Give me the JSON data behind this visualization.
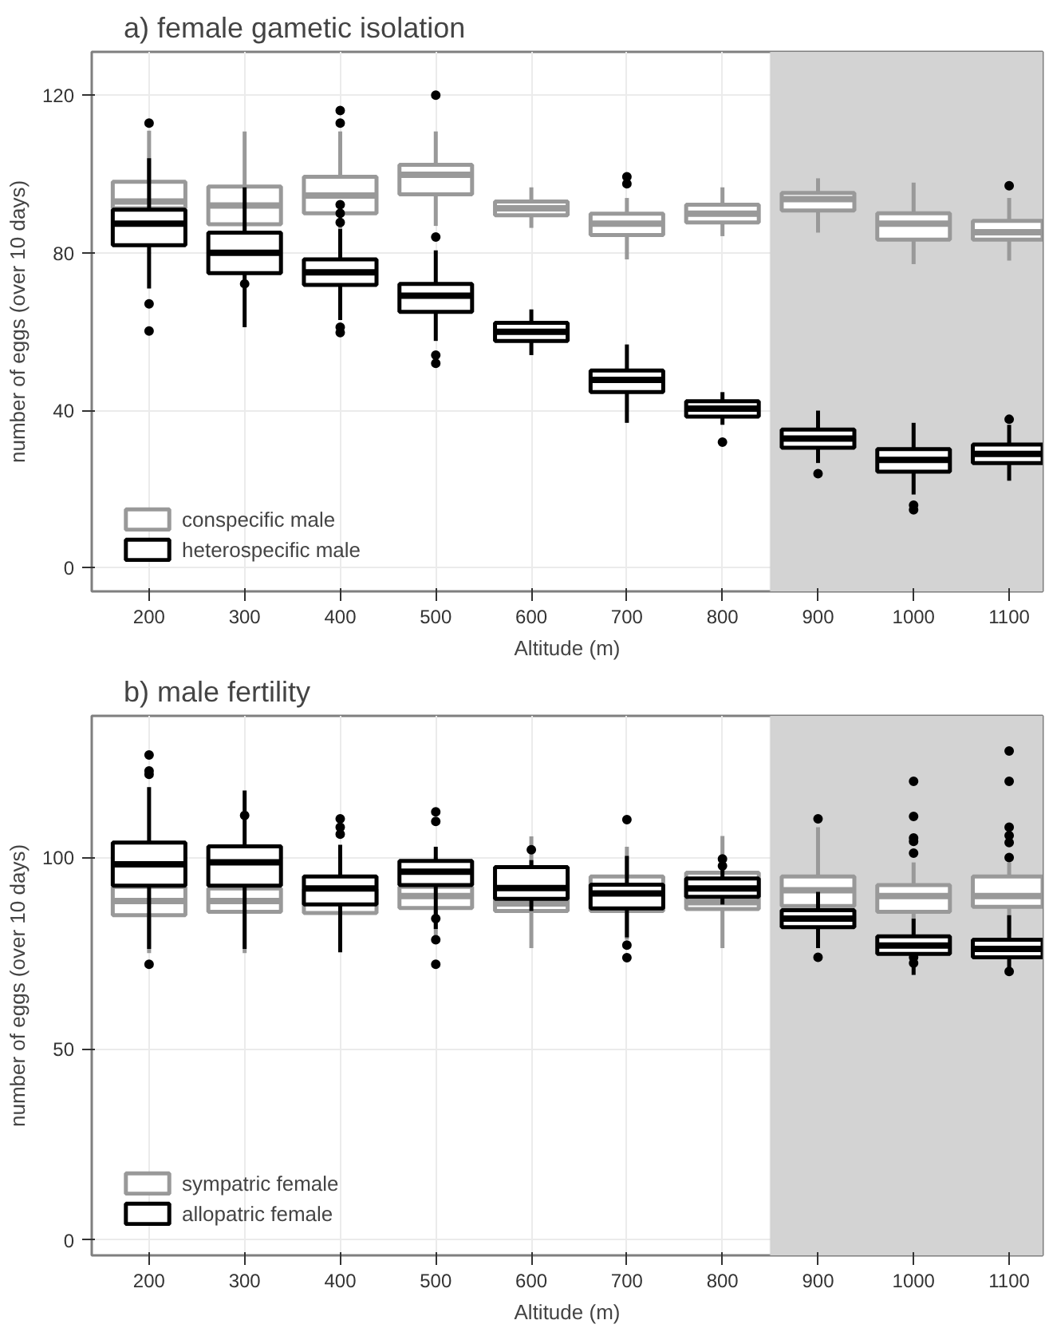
{
  "chart_data": [
    {
      "type": "box",
      "title": "a) female gametic isolation",
      "xlabel": "Altitude (m)",
      "ylabel": "number of eggs (over 10 days)",
      "x": [
        200,
        300,
        400,
        500,
        600,
        700,
        800,
        900,
        1000,
        1100
      ],
      "xlim": [
        140,
        1135
      ],
      "xticks": [
        200,
        300,
        400,
        500,
        600,
        700,
        800,
        900,
        1000,
        1100
      ],
      "ylim": [
        -6,
        131
      ],
      "yticks": [
        0,
        40,
        80,
        120
      ],
      "grid": true,
      "legend": "bottom left",
      "bands": [
        {
          "axis": "x",
          "from": 850,
          "to": 1135,
          "color": "#d3d3d3"
        }
      ],
      "series": [
        {
          "name": "conspecific male",
          "color": "#999999",
          "boxes": [
            {
              "low": 84,
              "q1": 91.3,
              "median": 93,
              "q3": 98,
              "high": 111
            },
            {
              "low": 82,
              "q1": 87.2,
              "median": 92,
              "q3": 96.8,
              "high": 110.8
            },
            {
              "low": 85,
              "q1": 90,
              "median": 94.5,
              "q3": 99.3,
              "high": 110.8,
              "outliers": [
                116.1,
                112.9
              ]
            },
            {
              "low": 86.8,
              "q1": 94.8,
              "median": 99.8,
              "q3": 102.3,
              "high": 110.8,
              "outliers": [
                120,
                84
              ]
            },
            {
              "low": 86.3,
              "q1": 89.5,
              "median": 91.3,
              "q3": 93,
              "high": 96.6
            },
            {
              "low": 78.3,
              "q1": 84.5,
              "median": 87.4,
              "q3": 89.9,
              "high": 93.9,
              "outliers": [
                99.3,
                97.5
              ]
            },
            {
              "low": 84.2,
              "q1": 87.7,
              "median": 89.9,
              "q3": 92.2,
              "high": 96.6
            },
            {
              "low": 85.1,
              "q1": 90.7,
              "median": 93.6,
              "q3": 95.2,
              "high": 98.9
            },
            {
              "low": 77.1,
              "q1": 83.3,
              "median": 87.4,
              "q3": 90,
              "high": 97.8
            },
            {
              "low": 78,
              "q1": 83.3,
              "median": 85.2,
              "q3": 88.1,
              "high": 93.9,
              "outliers": [
                97
              ]
            }
          ]
        },
        {
          "name": "heterospecific male",
          "color": "#000000",
          "boxes": [
            {
              "low": 70.9,
              "q1": 81.9,
              "median": 87.4,
              "q3": 90.9,
              "high": 104,
              "outliers": [
                112.9,
                67,
                60.1
              ]
            },
            {
              "low": 61.1,
              "q1": 74.8,
              "median": 80,
              "q3": 85.1,
              "high": 96.6,
              "outliers": [
                72.1
              ]
            },
            {
              "low": 62.9,
              "q1": 71.8,
              "median": 75,
              "q3": 78.3,
              "high": 86,
              "outliers": [
                92.2,
                90,
                87.7,
                61.1,
                59.7
              ]
            },
            {
              "low": 57.6,
              "q1": 65,
              "median": 69.1,
              "q3": 72.1,
              "high": 80.6,
              "outliers": [
                54,
                51.9
              ]
            },
            {
              "low": 54,
              "q1": 57.6,
              "median": 59.9,
              "q3": 62.2,
              "high": 65.6
            },
            {
              "low": 36.8,
              "q1": 44.6,
              "median": 47.7,
              "q3": 50.1,
              "high": 56.7
            },
            {
              "low": 36.3,
              "q1": 38.4,
              "median": 40.4,
              "q3": 42.3,
              "high": 44.6,
              "outliers": [
                31.9
              ]
            },
            {
              "low": 26.6,
              "q1": 30.5,
              "median": 32.8,
              "q3": 35.1,
              "high": 39.9,
              "outliers": [
                23.9
              ]
            },
            {
              "low": 18.6,
              "q1": 24.4,
              "median": 27.4,
              "q3": 30.1,
              "high": 36.8,
              "outliers": [
                15.9,
                14.7
              ]
            },
            {
              "low": 22.1,
              "q1": 26.6,
              "median": 28.9,
              "q3": 31.3,
              "high": 36.3,
              "outliers": [
                37.7
              ]
            }
          ]
        }
      ]
    },
    {
      "type": "box",
      "title": "b) male fertility",
      "xlabel": "Altitude (m)",
      "ylabel": "number of eggs (over 10 days)",
      "x": [
        200,
        300,
        400,
        500,
        600,
        700,
        800,
        900,
        1000,
        1100
      ],
      "xlim": [
        140,
        1135
      ],
      "xticks": [
        200,
        300,
        400,
        500,
        600,
        700,
        800,
        900,
        1000,
        1100
      ],
      "ylim": [
        -4,
        137
      ],
      "yticks": [
        0,
        50,
        100
      ],
      "grid": true,
      "legend": "bottom left",
      "bands": [
        {
          "axis": "x",
          "from": 850,
          "to": 1135,
          "color": "#d3d3d3"
        }
      ],
      "series": [
        {
          "name": "sympatric female",
          "color": "#999999",
          "boxes": [
            {
              "low": 75,
              "q1": 84.9,
              "median": 88.6,
              "q3": 92.3,
              "high": 100
            },
            {
              "low": 75,
              "q1": 85.8,
              "median": 88.6,
              "q3": 91.9,
              "high": 100
            },
            {
              "low": 77,
              "q1": 85.5,
              "median": 88.6,
              "q3": 91.7,
              "high": 100
            },
            {
              "low": 78,
              "q1": 86.8,
              "median": 89.9,
              "q3": 92.3,
              "high": 100
            },
            {
              "low": 76.3,
              "q1": 86,
              "median": 88,
              "q3": 95,
              "high": 105.5
            },
            {
              "low": 78.5,
              "q1": 86,
              "median": 89.5,
              "q3": 95,
              "high": 102.8
            },
            {
              "low": 76.3,
              "q1": 86.5,
              "median": 88.3,
              "q3": 96,
              "high": 105.6
            },
            {
              "low": 80,
              "q1": 87.3,
              "median": 91.4,
              "q3": 95,
              "high": 107.9,
              "outliers": [
                110.1
              ]
            },
            {
              "low": 80,
              "q1": 85.8,
              "median": 89.9,
              "q3": 92.8,
              "high": 98.7,
              "outliers": [
                119.9,
                110.7,
                105.1,
                104.2,
                101.1
              ]
            },
            {
              "low": 80,
              "q1": 87.1,
              "median": 89.9,
              "q3": 95,
              "high": 98.7,
              "outliers": [
                127.8,
                119.9,
                107.9,
                105.7,
                103.9,
                100
              ]
            }
          ]
        },
        {
          "name": "allopatric female",
          "color": "#000000",
          "boxes": [
            {
              "low": 76.1,
              "q1": 92.6,
              "median": 98.2,
              "q3": 103.9,
              "high": 118.4,
              "outliers": [
                126.8,
                122.6,
                121.7,
                72.1
              ]
            },
            {
              "low": 76.1,
              "q1": 92.6,
              "median": 98.7,
              "q3": 102.9,
              "high": 117.5,
              "outliers": [
                111
              ]
            },
            {
              "low": 75.2,
              "q1": 87.7,
              "median": 91.9,
              "q3": 95,
              "high": 103.3,
              "outliers": [
                110.1,
                107.9,
                106.1
              ]
            },
            {
              "low": 81.3,
              "q1": 92.8,
              "median": 96.3,
              "q3": 99.1,
              "high": 102.8,
              "outliers": [
                111.9,
                109.4,
                84,
                78.5,
                72.1
              ]
            },
            {
              "low": 86,
              "q1": 89.2,
              "median": 92,
              "q3": 97.5,
              "high": 99.3,
              "outliers": [
                102
              ]
            },
            {
              "low": 79.1,
              "q1": 86.7,
              "median": 90.6,
              "q3": 92.9,
              "high": 100.4,
              "outliers": [
                109.9,
                77.1,
                73.8
              ]
            },
            {
              "low": 87.7,
              "q1": 89.7,
              "median": 91.9,
              "q3": 94.5,
              "high": 96.9,
              "outliers": [
                99.6,
                97.8
              ]
            },
            {
              "low": 76.3,
              "q1": 81.8,
              "median": 84,
              "q3": 86.2,
              "high": 91,
              "outliers": [
                73.9
              ]
            },
            {
              "low": 69.3,
              "q1": 74.8,
              "median": 77,
              "q3": 79.4,
              "high": 84,
              "outliers": [
                73.9,
                72.4
              ]
            },
            {
              "low": 71.1,
              "q1": 73.9,
              "median": 76.1,
              "q3": 78.5,
              "high": 84.9,
              "outliers": [
                70.2
              ]
            }
          ]
        }
      ]
    }
  ]
}
